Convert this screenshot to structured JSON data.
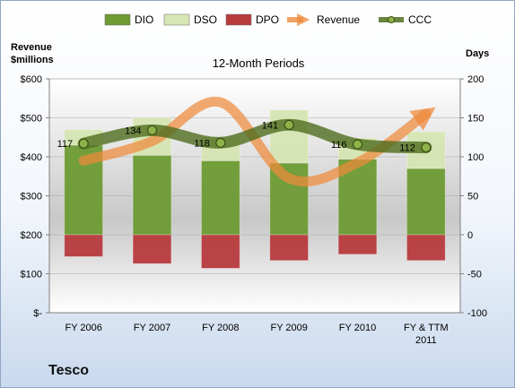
{
  "company": "Tesco",
  "chart_data": {
    "type": "bar",
    "title": "12-Month Periods",
    "categories": [
      "FY 2006",
      "FY 2007",
      "FY 2008",
      "FY 2009",
      "FY 2010",
      "FY & TTM 2011"
    ],
    "stacked_series": [
      {
        "name": "DIO",
        "axis": "right",
        "values": [
          115,
          102,
          95,
          92,
          97,
          85
        ],
        "color": "#6e9b34"
      },
      {
        "name": "DSO",
        "axis": "right",
        "values": [
          20,
          48,
          30,
          68,
          27,
          47
        ],
        "color": "#d7e6b4"
      },
      {
        "name": "DPO",
        "axis": "right",
        "values": [
          -28,
          -37,
          -43,
          -33,
          -25,
          -33
        ],
        "color": "#b83b3e"
      }
    ],
    "line_series": [
      {
        "name": "Revenue",
        "axis": "left",
        "style": "arrow",
        "values": [
          390,
          440,
          540,
          345,
          385,
          510
        ],
        "color": "#ee8a3c"
      },
      {
        "name": "CCC",
        "axis": "right",
        "style": "line-markers",
        "values": [
          117,
          134,
          118,
          141,
          116,
          112
        ],
        "labels": [
          "117",
          "134",
          "118",
          "141",
          "116",
          "112"
        ],
        "color": "#4f6d1e"
      }
    ],
    "legend": [
      "DIO",
      "DSO",
      "DPO",
      "Revenue",
      "CCC"
    ],
    "legend_position": "top",
    "y_left": {
      "label_line1": "Revenue",
      "label_line2": "$millions",
      "range": [
        0,
        600
      ],
      "ticks": [
        0,
        100,
        200,
        300,
        400,
        500,
        600
      ],
      "tick_labels": [
        "$-",
        "$100",
        "$200",
        "$300",
        "$400",
        "$500",
        "$600"
      ]
    },
    "y_right": {
      "label": "Days",
      "range": [
        -100,
        200
      ],
      "ticks": [
        -100,
        -50,
        0,
        50,
        100,
        150,
        200
      ],
      "tick_labels": [
        "-100",
        "-50",
        "0",
        "50",
        "100",
        "150",
        "200"
      ]
    },
    "gridlines": true
  }
}
